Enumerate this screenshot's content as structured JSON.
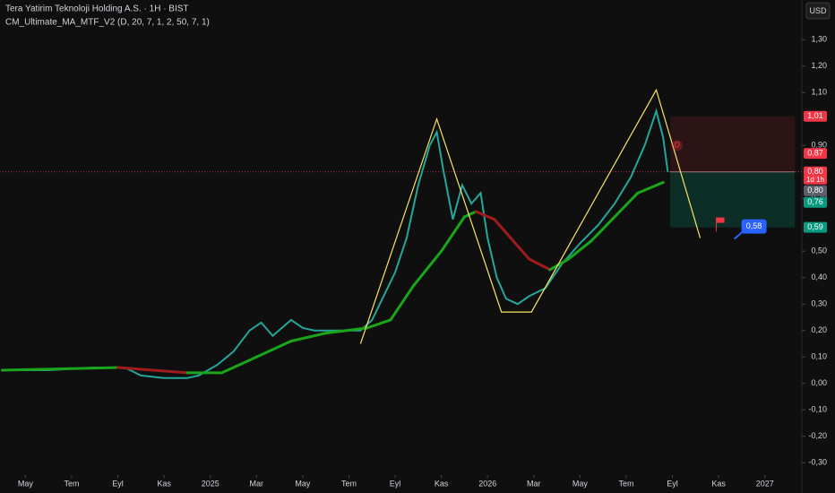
{
  "chart_data": {
    "type": "line",
    "title": "Tera Yatirim Teknoloji Holding A.S. · 1H · BIST",
    "subtitle": "CM_Ultimate_MA_MTF_V2 (D, 20, 7, 1, 2, 50, 7, 1)",
    "currency": "USD",
    "xlim": [
      2.9,
      37.6
    ],
    "ylim": [
      -0.34,
      1.45
    ],
    "xticks": [
      {
        "value": 4,
        "label": "May"
      },
      {
        "value": 6,
        "label": "Tem"
      },
      {
        "value": 8,
        "label": "Eyl"
      },
      {
        "value": 10,
        "label": "Kas"
      },
      {
        "value": 12,
        "label": "2025"
      },
      {
        "value": 14,
        "label": "Mar"
      },
      {
        "value": 16,
        "label": "May"
      },
      {
        "value": 18,
        "label": "Tem"
      },
      {
        "value": 20,
        "label": "Eyl"
      },
      {
        "value": 22,
        "label": "Kas"
      },
      {
        "value": 24,
        "label": "2026"
      },
      {
        "value": 26,
        "label": "Mar"
      },
      {
        "value": 28,
        "label": "May"
      },
      {
        "value": 30,
        "label": "Tem"
      },
      {
        "value": 32,
        "label": "Eyl"
      },
      {
        "value": 34,
        "label": "Kas"
      },
      {
        "value": 36,
        "label": "2027"
      }
    ],
    "yticks": [
      {
        "value": 1.3,
        "label": "1,30"
      },
      {
        "value": 1.2,
        "label": "1,20"
      },
      {
        "value": 1.1,
        "label": "1,10"
      },
      {
        "value": 0.9,
        "label": "0,90"
      },
      {
        "value": 0.7,
        "label": "0,70"
      },
      {
        "value": 0.5,
        "label": "0,50"
      },
      {
        "value": 0.4,
        "label": "0,40"
      },
      {
        "value": 0.3,
        "label": "0,30"
      },
      {
        "value": 0.2,
        "label": "0,20"
      },
      {
        "value": 0.1,
        "label": "0,10"
      },
      {
        "value": 0,
        "label": "0,00"
      },
      {
        "value": -0.1,
        "label": "-0,10"
      },
      {
        "value": -0.2,
        "label": "-0,20"
      },
      {
        "value": -0.3,
        "label": "-0,30"
      }
    ],
    "series": [
      {
        "name": "Price",
        "color": "#26a69a",
        "x": [
          3,
          5,
          7,
          8.3,
          9,
          10,
          11,
          11.5,
          12.3,
          13,
          13.7,
          14.2,
          14.7,
          15.5,
          16,
          16.5,
          17.5,
          18.5,
          19,
          19.5,
          20,
          20.5,
          21,
          21.5,
          21.8,
          22.1,
          22.5,
          22.9,
          23.3,
          23.7,
          24,
          24.4,
          24.8,
          25.3,
          25.8,
          26.5,
          27.2,
          28,
          28.8,
          29.5,
          30.2,
          30.8,
          31.3,
          31.6,
          31.8
        ],
        "values": [
          0.05,
          0.05,
          0.06,
          0.06,
          0.03,
          0.02,
          0.02,
          0.03,
          0.07,
          0.12,
          0.2,
          0.23,
          0.18,
          0.24,
          0.21,
          0.2,
          0.2,
          0.2,
          0.24,
          0.33,
          0.42,
          0.55,
          0.75,
          0.9,
          0.95,
          0.8,
          0.62,
          0.75,
          0.68,
          0.72,
          0.55,
          0.4,
          0.32,
          0.3,
          0.33,
          0.36,
          0.45,
          0.53,
          0.6,
          0.68,
          0.78,
          0.9,
          1.03,
          0.93,
          0.8
        ]
      },
      {
        "name": "CM_Ultimate_MA",
        "color": "#1aa61a",
        "down_color": "#a01c1c",
        "x": [
          3,
          8,
          11,
          12.5,
          14,
          15.5,
          17,
          18.8,
          19.8,
          20.8,
          22,
          23,
          23.5,
          24.3,
          25,
          25.8,
          26.7,
          27.5,
          28.5,
          29.5,
          30.5,
          31.6
        ],
        "values": [
          0.05,
          0.06,
          0.04,
          0.04,
          0.1,
          0.16,
          0.19,
          0.21,
          0.24,
          0.37,
          0.5,
          0.63,
          0.65,
          0.62,
          0.55,
          0.47,
          0.43,
          0.47,
          0.54,
          0.63,
          0.72,
          0.76
        ]
      },
      {
        "name": "Pattern",
        "color": "#f5e663",
        "x": [
          18.5,
          21.8,
          24.6,
          25.9,
          31.3,
          33.2
        ],
        "values": [
          0.15,
          1.0,
          0.27,
          0.27,
          1.11,
          0.55
        ]
      }
    ],
    "position": {
      "entry": 0.8,
      "stop": 1.01,
      "target": 0.59,
      "x": [
        31.9,
        37.3
      ]
    },
    "price_labels": [
      {
        "value": 1.01,
        "label": "1,01",
        "color": "#f23645"
      },
      {
        "value": 0.87,
        "label": "0,87",
        "color": "#f23645"
      },
      {
        "value": 0.8,
        "label": "0,80",
        "color": "#f23645",
        "sub": "1d 1h"
      },
      {
        "value": 0.8,
        "label": "0,80",
        "color": "#5d606b"
      },
      {
        "value": 0.76,
        "label": "0,76",
        "color": "#089981"
      },
      {
        "value": 0.59,
        "label": "0,59",
        "color": "#089981"
      }
    ],
    "flag": {
      "x": 33.9,
      "value": 0.58,
      "label": "0,58"
    },
    "marker": {
      "x": 32.2,
      "value": 0.9,
      "label": "D"
    }
  }
}
